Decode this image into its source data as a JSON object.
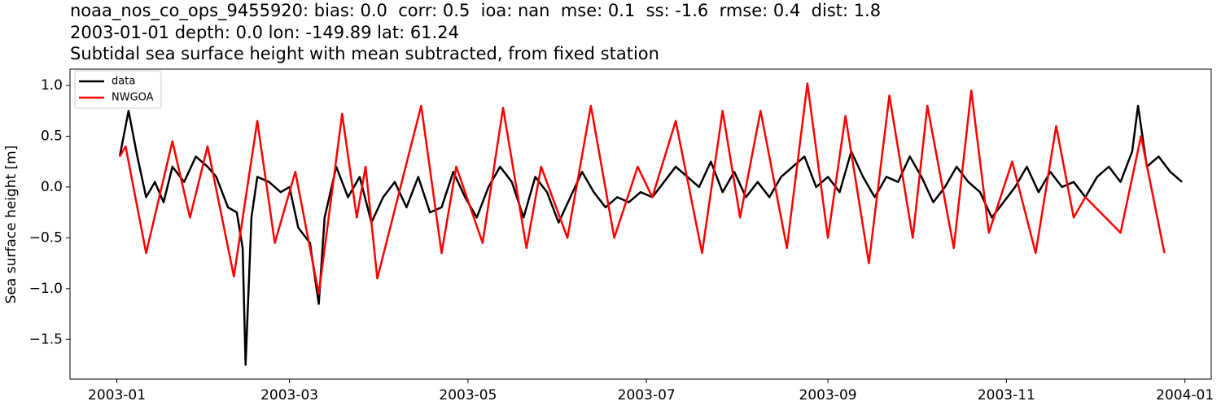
{
  "chart_data": {
    "type": "line",
    "title": [
      "noaa_nos_co_ops_9455920: bias: 0.0  corr: 0.5  ioa: nan  mse: 0.1  ss: -1.6  rmse: 0.4  dist: 1.8",
      "2003-01-01 depth: 0.0 lon: -149.89 lat: 61.24",
      "Subtidal sea surface height with mean subtracted, from fixed station"
    ],
    "y_label": "Sea surface height [m]",
    "xlim": [
      "2002-12-16",
      "2004-01-10"
    ],
    "xticks": [
      {
        "value": "2003-01-01",
        "label": "2003-01"
      },
      {
        "value": "2003-03-01",
        "label": "2003-03"
      },
      {
        "value": "2003-05-01",
        "label": "2003-05"
      },
      {
        "value": "2003-07-01",
        "label": "2003-07"
      },
      {
        "value": "2003-09-01",
        "label": "2003-09"
      },
      {
        "value": "2003-11-01",
        "label": "2003-11"
      },
      {
        "value": "2004-01-01",
        "label": "2004-01"
      }
    ],
    "ylim": [
      -1.89,
      1.16
    ],
    "yticks": [
      {
        "value": -1.5,
        "label": "−1.5"
      },
      {
        "value": -1.0,
        "label": "−1.0"
      },
      {
        "value": -0.5,
        "label": "−0.5"
      },
      {
        "value": 0.0,
        "label": "0.0"
      },
      {
        "value": 0.5,
        "label": "0.5"
      },
      {
        "value": 1.0,
        "label": "1.0"
      }
    ],
    "legend": "upper left",
    "series": [
      {
        "name": "data",
        "color": "#000000",
        "x": [
          "2003-01-02",
          "2003-01-05",
          "2003-01-08",
          "2003-01-11",
          "2003-01-14",
          "2003-01-17",
          "2003-01-20",
          "2003-01-24",
          "2003-01-28",
          "2003-02-01",
          "2003-02-04",
          "2003-02-08",
          "2003-02-11",
          "2003-02-13",
          "2003-02-14",
          "2003-02-16",
          "2003-02-18",
          "2003-02-22",
          "2003-02-26",
          "2003-03-01",
          "2003-03-04",
          "2003-03-08",
          "2003-03-11",
          "2003-03-13",
          "2003-03-17",
          "2003-03-21",
          "2003-03-25",
          "2003-03-29",
          "2003-04-02",
          "2003-04-06",
          "2003-04-10",
          "2003-04-14",
          "2003-04-18",
          "2003-04-22",
          "2003-04-26",
          "2003-04-30",
          "2003-05-04",
          "2003-05-08",
          "2003-05-12",
          "2003-05-16",
          "2003-05-20",
          "2003-05-24",
          "2003-05-28",
          "2003-06-01",
          "2003-06-05",
          "2003-06-09",
          "2003-06-13",
          "2003-06-17",
          "2003-06-21",
          "2003-06-25",
          "2003-06-29",
          "2003-07-03",
          "2003-07-07",
          "2003-07-11",
          "2003-07-15",
          "2003-07-19",
          "2003-07-23",
          "2003-07-27",
          "2003-07-31",
          "2003-08-04",
          "2003-08-08",
          "2003-08-12",
          "2003-08-16",
          "2003-08-20",
          "2003-08-24",
          "2003-08-28",
          "2003-09-01",
          "2003-09-05",
          "2003-09-09",
          "2003-09-13",
          "2003-09-17",
          "2003-09-21",
          "2003-09-25",
          "2003-09-29",
          "2003-10-03",
          "2003-10-07",
          "2003-10-11",
          "2003-10-15",
          "2003-10-19",
          "2003-10-23",
          "2003-10-27",
          "2003-10-31",
          "2003-11-04",
          "2003-11-08",
          "2003-11-12",
          "2003-11-16",
          "2003-11-20",
          "2003-11-24",
          "2003-11-28",
          "2003-12-02",
          "2003-12-06",
          "2003-12-10",
          "2003-12-14",
          "2003-12-16",
          "2003-12-19",
          "2003-12-23",
          "2003-12-27",
          "2003-12-31"
        ],
        "values": [
          0.3,
          0.75,
          0.3,
          -0.1,
          0.05,
          -0.15,
          0.2,
          0.05,
          0.3,
          0.2,
          0.1,
          -0.2,
          -0.25,
          -0.6,
          -1.75,
          -0.3,
          0.1,
          0.05,
          -0.05,
          0.0,
          -0.4,
          -0.55,
          -1.15,
          -0.3,
          0.2,
          -0.1,
          0.1,
          -0.35,
          -0.1,
          0.05,
          -0.2,
          0.1,
          -0.25,
          -0.2,
          0.15,
          -0.1,
          -0.3,
          0.0,
          0.2,
          0.05,
          -0.3,
          0.1,
          -0.05,
          -0.35,
          -0.1,
          0.15,
          -0.05,
          -0.2,
          -0.1,
          -0.15,
          -0.05,
          -0.1,
          0.05,
          0.2,
          0.1,
          0.0,
          0.25,
          -0.05,
          0.15,
          -0.1,
          0.05,
          -0.1,
          0.1,
          0.2,
          0.3,
          0.0,
          0.1,
          -0.05,
          0.35,
          0.1,
          -0.1,
          0.1,
          0.05,
          0.3,
          0.1,
          -0.15,
          0.0,
          0.2,
          0.05,
          -0.05,
          -0.3,
          -0.15,
          0.0,
          0.2,
          -0.05,
          0.15,
          0.0,
          0.05,
          -0.1,
          0.1,
          0.2,
          0.05,
          0.35,
          0.8,
          0.2,
          0.3,
          0.15,
          0.05
        ]
      },
      {
        "name": "NWGOA",
        "color": "#ff0000",
        "x": [
          "2003-01-02",
          "2003-01-04",
          "2003-01-11",
          "2003-01-20",
          "2003-01-26",
          "2003-02-01",
          "2003-02-10",
          "2003-02-18",
          "2003-02-24",
          "2003-03-03",
          "2003-03-11",
          "2003-03-19",
          "2003-03-24",
          "2003-03-27",
          "2003-03-31",
          "2003-04-15",
          "2003-04-22",
          "2003-04-27",
          "2003-05-06",
          "2003-05-13",
          "2003-05-21",
          "2003-05-26",
          "2003-06-04",
          "2003-06-12",
          "2003-06-20",
          "2003-06-28",
          "2003-07-03",
          "2003-07-11",
          "2003-07-20",
          "2003-07-27",
          "2003-08-02",
          "2003-08-09",
          "2003-08-18",
          "2003-08-25",
          "2003-09-01",
          "2003-09-07",
          "2003-09-15",
          "2003-09-22",
          "2003-09-30",
          "2003-10-05",
          "2003-10-14",
          "2003-10-20",
          "2003-10-26",
          "2003-11-03",
          "2003-11-11",
          "2003-11-18",
          "2003-11-24",
          "2003-11-28",
          "2003-12-10",
          "2003-12-17",
          "2003-12-25"
        ],
        "values": [
          0.3,
          0.4,
          -0.65,
          0.45,
          -0.3,
          0.4,
          -0.88,
          0.65,
          -0.55,
          0.15,
          -1.05,
          0.72,
          -0.3,
          0.2,
          -0.9,
          0.8,
          -0.65,
          0.2,
          -0.55,
          0.78,
          -0.6,
          0.2,
          -0.5,
          0.8,
          -0.5,
          0.2,
          -0.1,
          0.65,
          -0.65,
          0.75,
          -0.3,
          0.75,
          -0.6,
          1.02,
          -0.5,
          0.7,
          -0.75,
          0.9,
          -0.5,
          0.8,
          -0.6,
          0.95,
          -0.45,
          0.25,
          -0.65,
          0.6,
          -0.3,
          -0.1,
          -0.45,
          0.5,
          -0.65
        ]
      }
    ]
  }
}
